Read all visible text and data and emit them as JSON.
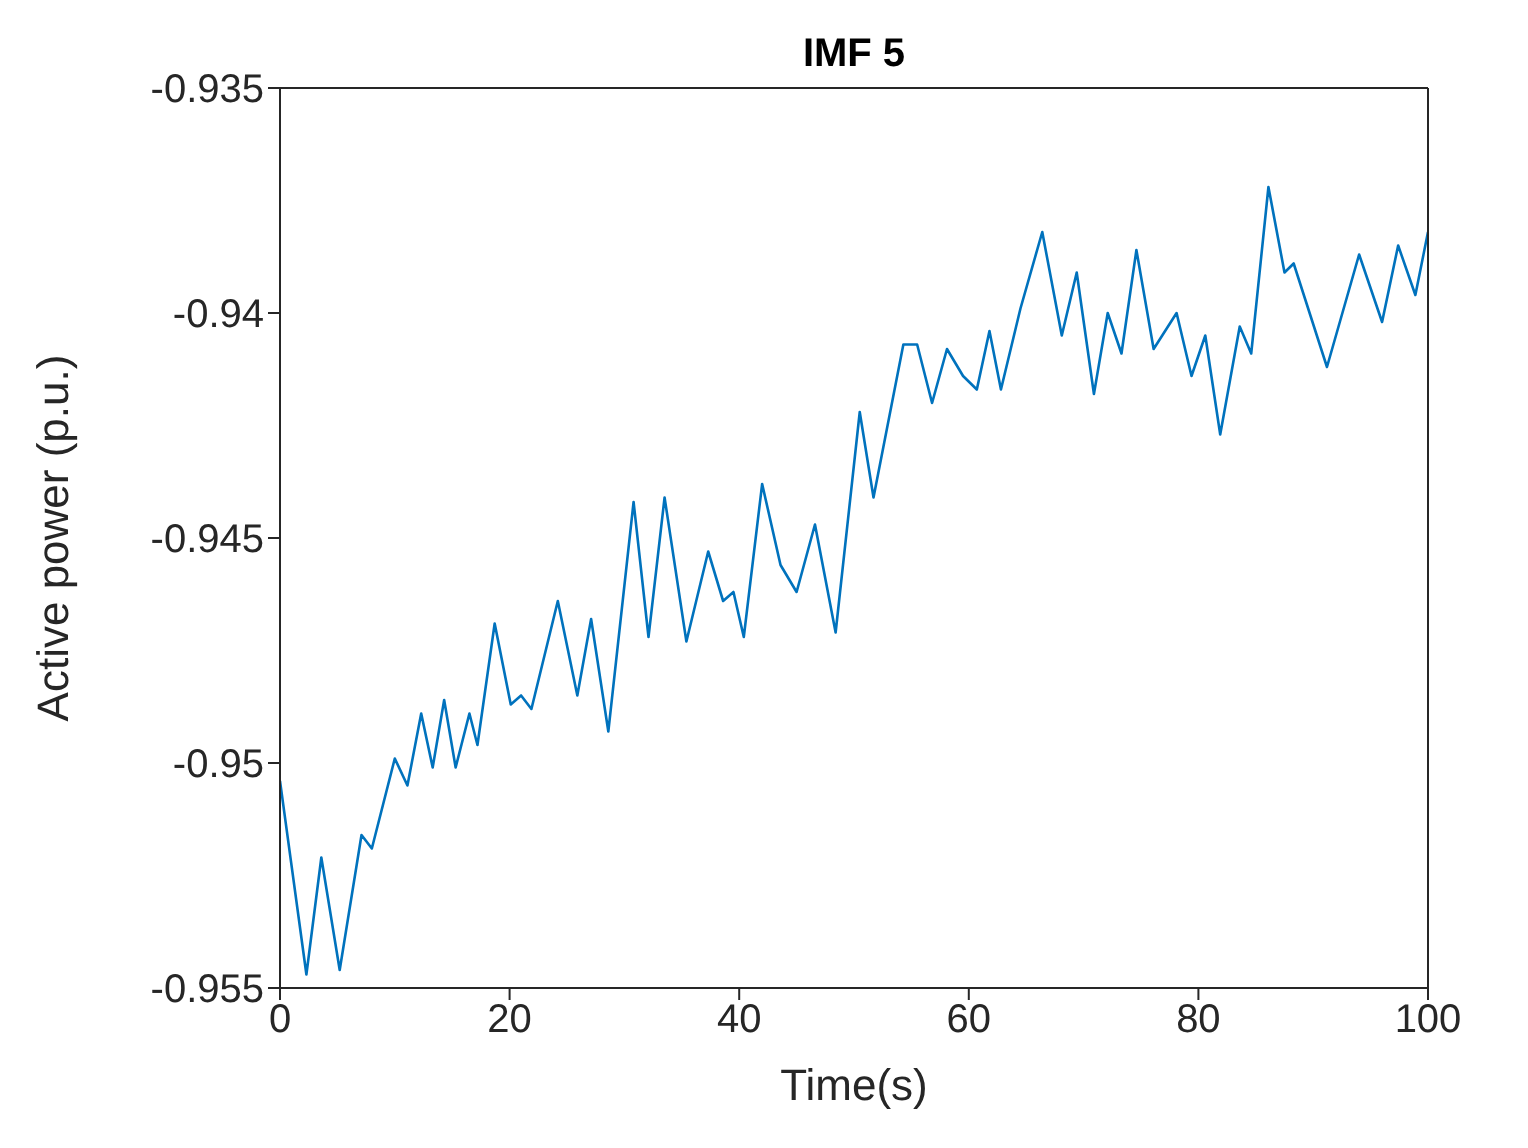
{
  "chart_data": {
    "type": "line",
    "title": "IMF 5",
    "xlabel": "Time(s)",
    "ylabel": "Active power (p.u.)",
    "xlim": [
      0,
      100
    ],
    "xticks": [
      0,
      20,
      40,
      60,
      80,
      100
    ],
    "ylim": [
      -0.955,
      -0.935
    ],
    "yticks": [
      -0.955,
      -0.95,
      -0.945,
      -0.94,
      -0.935
    ],
    "marker": "none",
    "line_style": "solid",
    "series": [
      {
        "color": "#0072bd",
        "x": [
          0,
          2.3,
          3.6,
          5.2,
          7.1,
          8.0,
          10.0,
          11.1,
          12.3,
          13.3,
          14.3,
          15.3,
          16.5,
          17.2,
          18.7,
          20.1,
          21.0,
          21.9,
          24.2,
          25.9,
          27.1,
          28.6,
          30.8,
          32.1,
          33.5,
          35.4,
          37.3,
          38.6,
          39.5,
          40.4,
          42.0,
          43.6,
          45.0,
          46.6,
          48.4,
          50.5,
          51.7,
          54.3,
          55.5,
          56.8,
          58.1,
          59.5,
          60.7,
          61.8,
          62.8,
          64.5,
          66.4,
          68.1,
          69.4,
          70.9,
          72.1,
          73.3,
          74.6,
          76.1,
          78.1,
          79.4,
          80.6,
          81.9,
          83.6,
          84.6,
          86.1,
          87.5,
          88.3,
          91.2,
          94.0,
          96.0,
          97.4,
          98.9,
          100
        ],
        "values": [
          -0.9504,
          -0.9547,
          -0.9521,
          -0.9546,
          -0.9516,
          -0.9519,
          -0.9499,
          -0.9505,
          -0.9489,
          -0.9501,
          -0.9486,
          -0.9501,
          -0.9489,
          -0.9496,
          -0.9469,
          -0.9487,
          -0.9485,
          -0.9488,
          -0.9464,
          -0.9485,
          -0.9468,
          -0.9493,
          -0.9442,
          -0.9472,
          -0.9441,
          -0.9473,
          -0.9453,
          -0.9464,
          -0.9462,
          -0.9472,
          -0.9438,
          -0.9456,
          -0.9462,
          -0.9447,
          -0.9471,
          -0.9422,
          -0.9441,
          -0.9407,
          -0.9407,
          -0.942,
          -0.9408,
          -0.9414,
          -0.9417,
          -0.9404,
          -0.9417,
          -0.9399,
          -0.9382,
          -0.9405,
          -0.9391,
          -0.9418,
          -0.94,
          -0.9409,
          -0.9386,
          -0.9408,
          -0.94,
          -0.9414,
          -0.9405,
          -0.9427,
          -0.9403,
          -0.9409,
          -0.9372,
          -0.9391,
          -0.9389,
          -0.9412,
          -0.9387,
          -0.9402,
          -0.9385,
          -0.9396,
          -0.9382
        ]
      }
    ]
  }
}
